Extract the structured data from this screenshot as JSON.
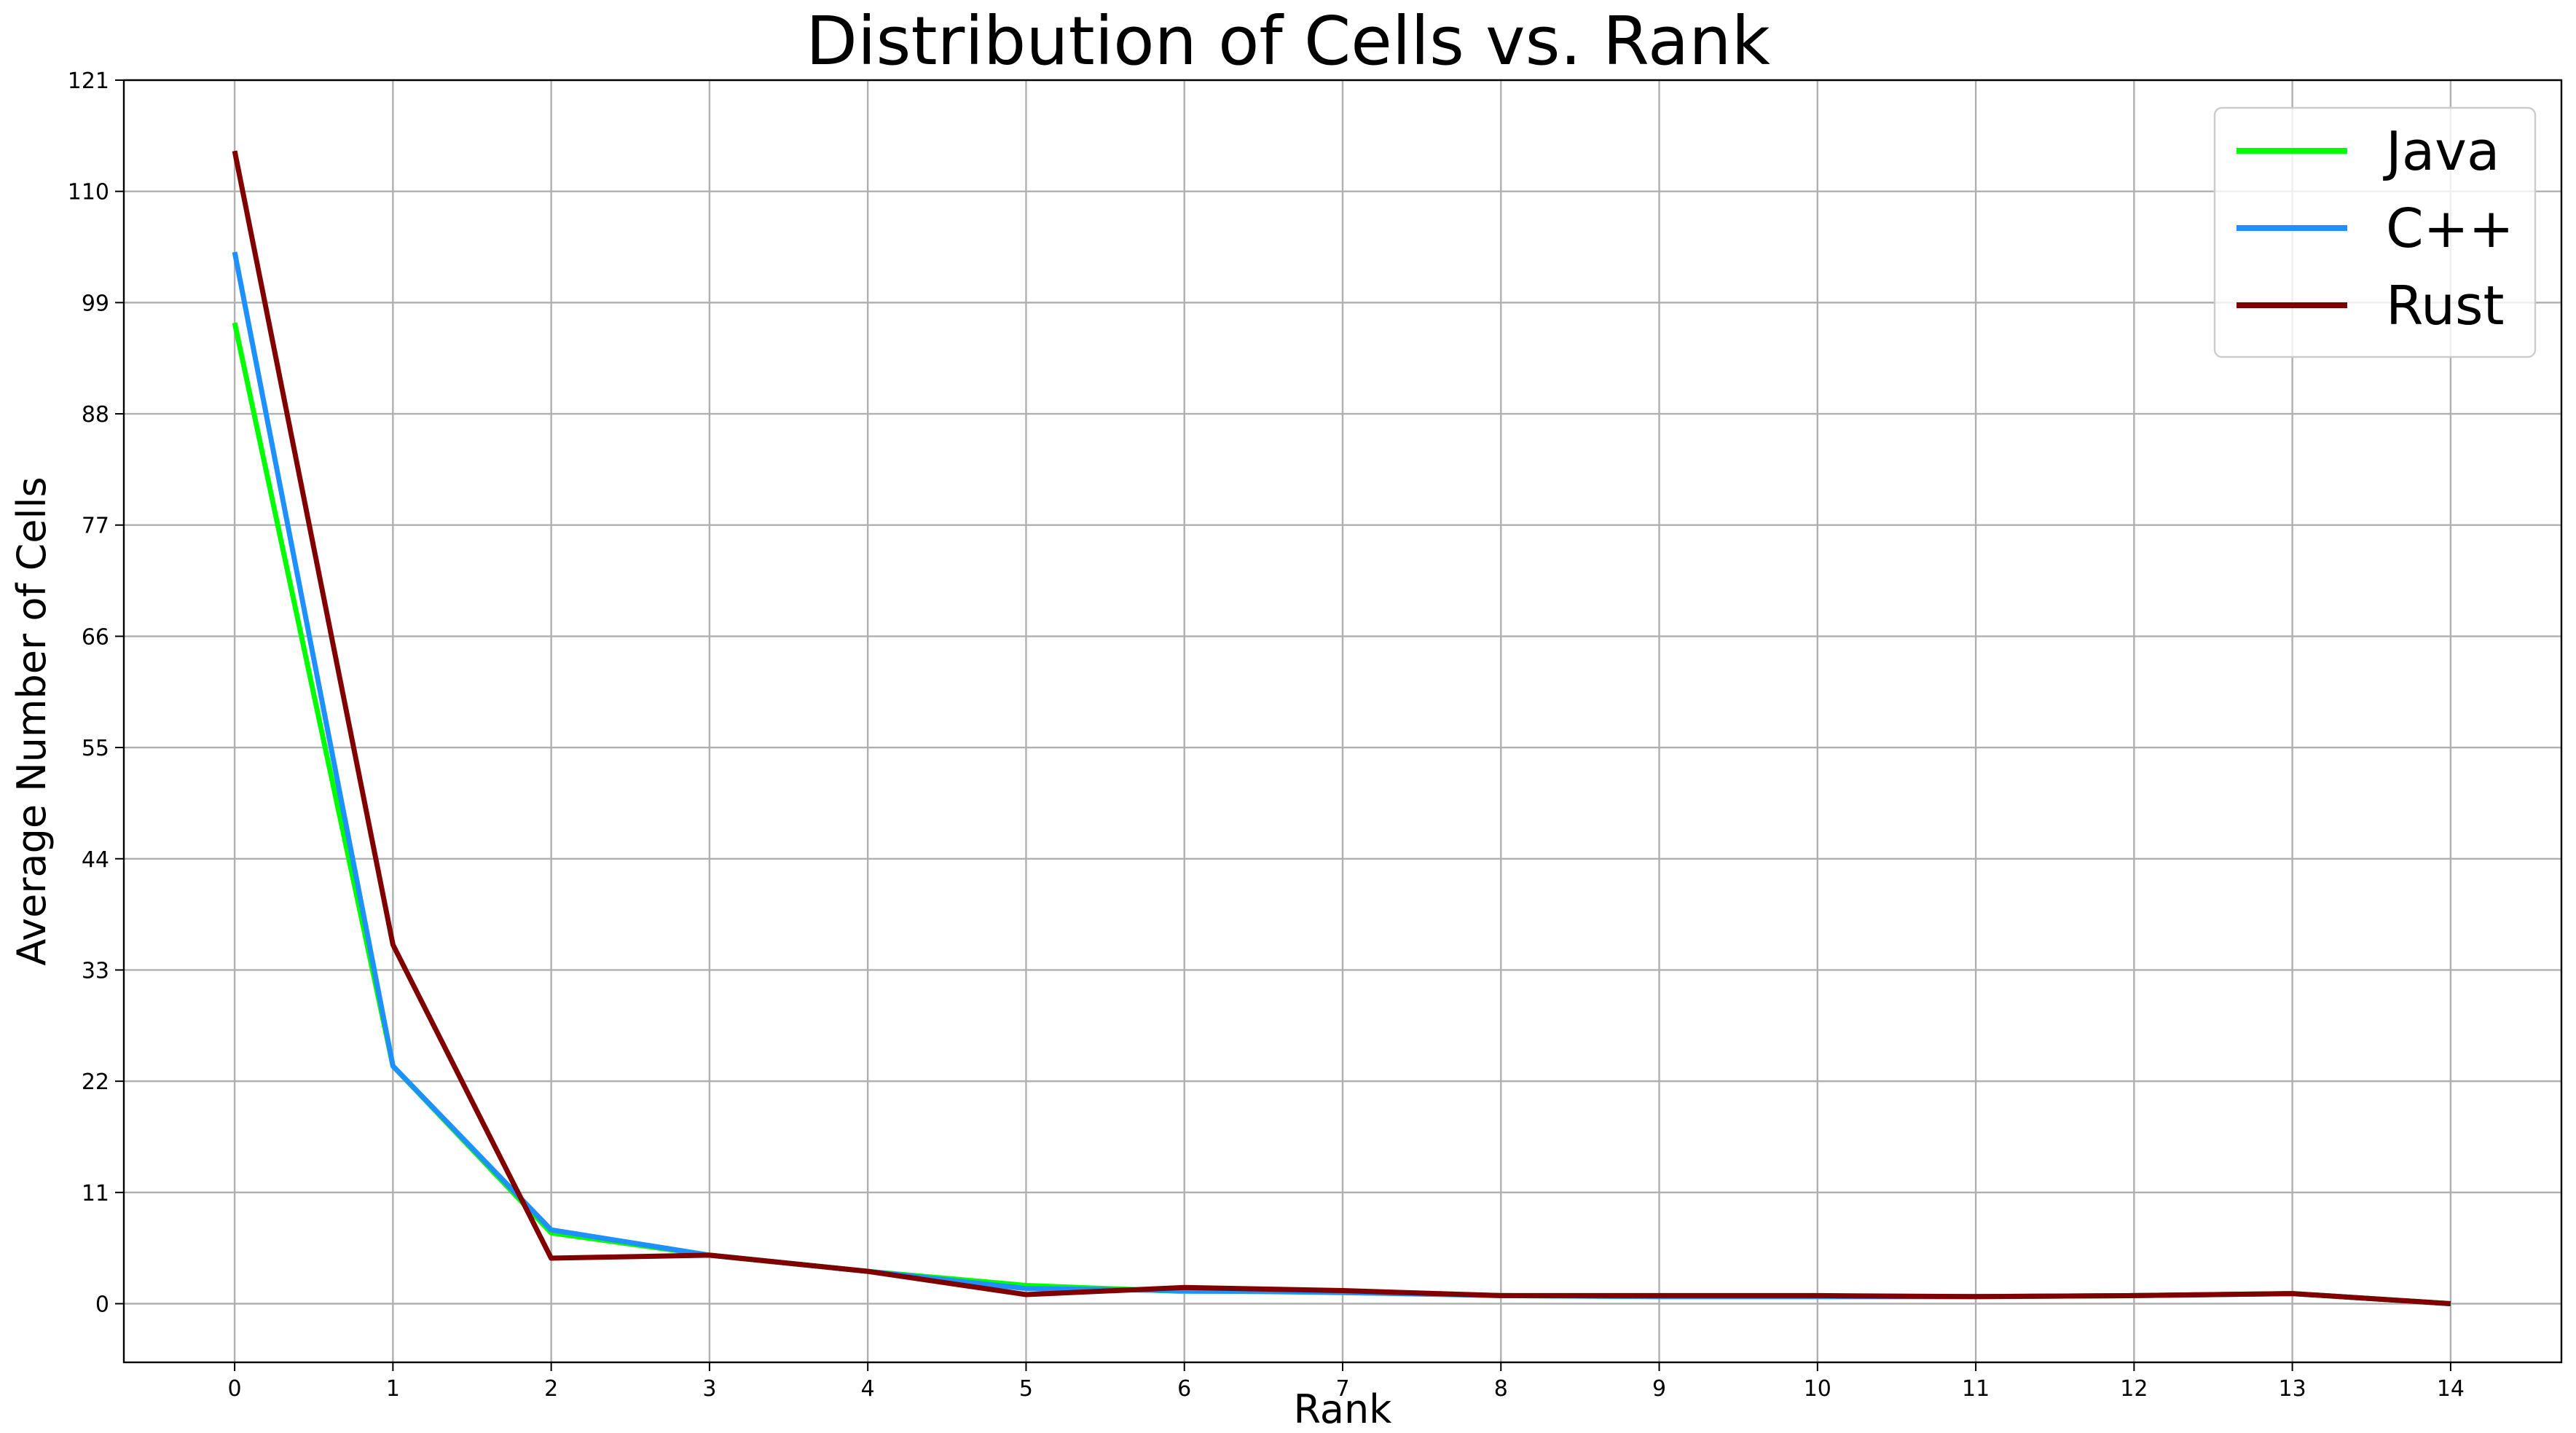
{
  "chart_data": {
    "type": "line",
    "title": "Distribution of Cells vs. Rank",
    "xlabel": "Rank",
    "ylabel": "Average Number of Cells",
    "x": [
      0,
      1,
      2,
      3,
      4,
      5,
      6,
      7,
      8,
      9,
      10,
      11,
      12,
      13,
      14
    ],
    "xticks": [
      "0",
      "1",
      "2",
      "3",
      "4",
      "5",
      "6",
      "7",
      "8",
      "9",
      "10",
      "11",
      "12",
      "13",
      "14"
    ],
    "yticks": [
      "0",
      "11",
      "22",
      "33",
      "44",
      "55",
      "66",
      "77",
      "88",
      "99",
      "110",
      "121"
    ],
    "ytick_values": [
      0,
      11,
      22,
      33,
      44,
      55,
      66,
      77,
      88,
      99,
      110,
      121
    ],
    "xlim": [
      -0.7,
      14.7
    ],
    "ylim": [
      -5.8,
      121
    ],
    "grid": true,
    "legend_position": "top-right",
    "series": [
      {
        "name": "Java",
        "color": "#00ff00",
        "values": [
          97,
          23.5,
          7,
          4.8,
          3.2,
          1.8,
          1.2,
          1.2,
          0.8,
          0.7,
          0.7,
          0.7,
          0.8,
          1.0,
          0
        ]
      },
      {
        "name": "C++",
        "color": "#1e90ff",
        "values": [
          104,
          23.5,
          7.3,
          4.8,
          3.2,
          1.5,
          1.3,
          1.1,
          0.8,
          0.7,
          0.7,
          0.7,
          0.8,
          1.0,
          0
        ]
      },
      {
        "name": "Rust",
        "color": "#800000",
        "values": [
          114,
          35.5,
          4.5,
          4.8,
          3.2,
          0.9,
          1.6,
          1.3,
          0.8,
          0.8,
          0.8,
          0.7,
          0.8,
          1.0,
          0
        ]
      }
    ]
  }
}
